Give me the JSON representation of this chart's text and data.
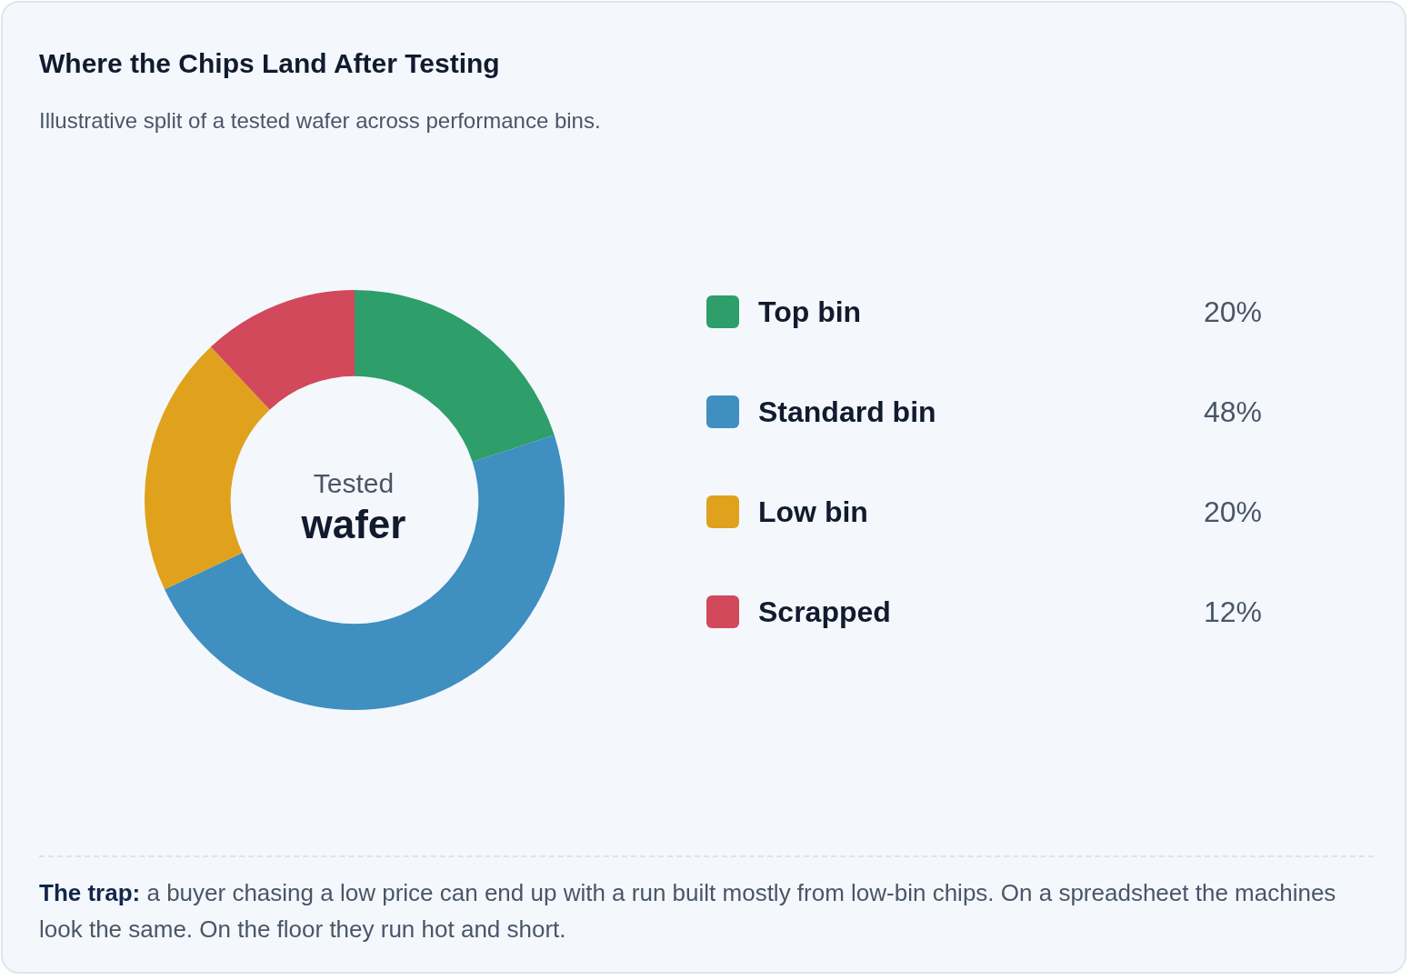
{
  "chart_data": {
    "type": "donut",
    "title": "Where the Chips Land After Testing",
    "subtitle": "Illustrative split of a tested wafer across performance bins.",
    "categories": [
      "Top bin",
      "Standard bin",
      "Low bin",
      "Scrapped"
    ],
    "values": [
      20,
      48,
      20,
      12
    ],
    "value_labels": [
      "20%",
      "48%",
      "20%",
      "12%"
    ],
    "colors": [
      "#2e9e6a",
      "#3f8fc0",
      "#e0a21c",
      "#d2495b"
    ],
    "legend": "right",
    "annotations": [
      "Tested",
      "wafer",
      "The trap:",
      "a buyer chasing a low price can end up with a run built mostly from low-bin chips. On a spreadsheet the machines look the same. On the floor they run hot and short."
    ]
  }
}
